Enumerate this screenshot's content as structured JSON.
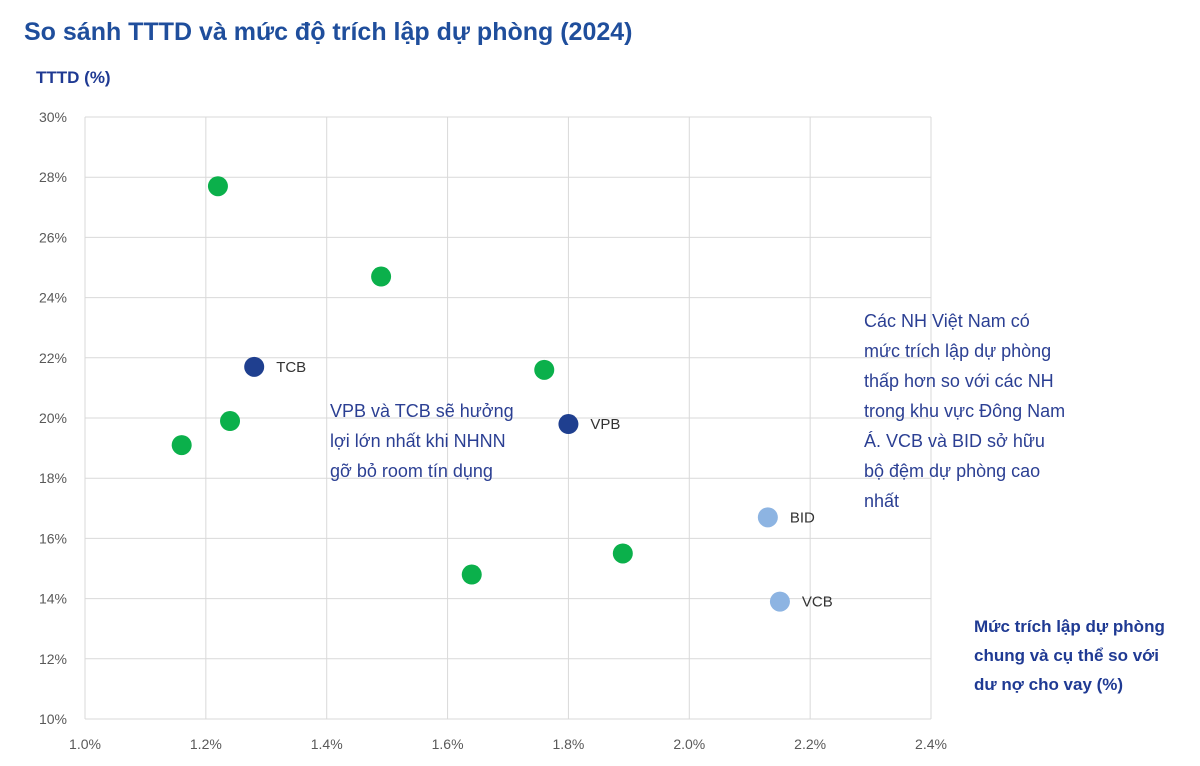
{
  "chart_data": {
    "type": "scatter",
    "title": "So sánh TTTD và mức độ trích lập dự phòng (2024)",
    "ylabel": "TTTD (%)",
    "xlabel": "Mức trích lập dự phòng chung và cụ thể so với dư nợ cho vay (%)",
    "xlim": [
      1.0,
      2.4
    ],
    "ylim": [
      10,
      30
    ],
    "x_ticks": [
      {
        "value": 1.0,
        "label": "1.0%"
      },
      {
        "value": 1.2,
        "label": "1.2%"
      },
      {
        "value": 1.4,
        "label": "1.4%"
      },
      {
        "value": 1.6,
        "label": "1.6%"
      },
      {
        "value": 1.8,
        "label": "1.8%"
      },
      {
        "value": 2.0,
        "label": "2.0%"
      },
      {
        "value": 2.2,
        "label": "2.2%"
      },
      {
        "value": 2.4,
        "label": "2.4%"
      }
    ],
    "y_ticks": [
      {
        "value": 10,
        "label": "10%"
      },
      {
        "value": 12,
        "label": "12%"
      },
      {
        "value": 14,
        "label": "14%"
      },
      {
        "value": 16,
        "label": "16%"
      },
      {
        "value": 18,
        "label": "18%"
      },
      {
        "value": 20,
        "label": "20%"
      },
      {
        "value": 22,
        "label": "22%"
      },
      {
        "value": 24,
        "label": "24%"
      },
      {
        "value": 26,
        "label": "26%"
      },
      {
        "value": 28,
        "label": "28%"
      },
      {
        "value": 30,
        "label": "30%"
      }
    ],
    "grid": true,
    "colors": {
      "green": "#0bb04b",
      "dark_blue": "#1f3f8f",
      "light_blue": "#8db4e2"
    },
    "points": [
      {
        "x": 1.22,
        "y": 27.7,
        "color": "green",
        "label": ""
      },
      {
        "x": 1.49,
        "y": 24.7,
        "color": "green",
        "label": ""
      },
      {
        "x": 1.28,
        "y": 21.7,
        "color": "dark_blue",
        "label": "TCB"
      },
      {
        "x": 1.24,
        "y": 19.9,
        "color": "green",
        "label": ""
      },
      {
        "x": 1.16,
        "y": 19.1,
        "color": "green",
        "label": ""
      },
      {
        "x": 1.76,
        "y": 21.6,
        "color": "green",
        "label": ""
      },
      {
        "x": 1.8,
        "y": 19.8,
        "color": "dark_blue",
        "label": "VPB"
      },
      {
        "x": 1.64,
        "y": 14.8,
        "color": "green",
        "label": ""
      },
      {
        "x": 1.89,
        "y": 15.5,
        "color": "green",
        "label": ""
      },
      {
        "x": 2.13,
        "y": 16.7,
        "color": "light_blue",
        "label": "BID"
      },
      {
        "x": 2.15,
        "y": 13.9,
        "color": "light_blue",
        "label": "VCB"
      }
    ]
  },
  "annotations": {
    "left_note": "VPB và TCB sẽ hưởng lợi lớn nhất khi NHNN gỡ bỏ room tín dụng",
    "right_note": "Các NH Việt Nam có mức trích lập dự phòng thấp hơn so với các NH trong khu vực Đông Nam Á. VCB và BID sở hữu bộ đệm dự phòng cao nhất"
  }
}
